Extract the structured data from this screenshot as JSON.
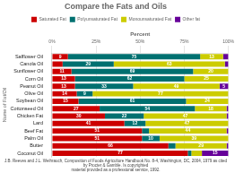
{
  "chart_data": {
    "type": "bar",
    "orientation": "horizontal",
    "stacked": true,
    "title": "Compare the Fats and Oils",
    "xlabel": "Percent",
    "ylabel": "Name of Fat/Oil",
    "annotations": [
      "J.B. Reeves and J.L. Weihrauch, Composition of Foods Agriculture Handbook No. 8-4, Washington, DC, 2004, 1979 as cited by Procter & Gamble. Is copyrighted\nmaterial provided as a professional service, 1992."
    ],
    "categories": [
      "Coconut Oil",
      "Butter",
      "Palm Oil",
      "Beef Fat",
      "Lard",
      "Chicken Fat",
      "Cottonseed Oil",
      "Soybean Oil",
      "Olive Oil",
      "Peanut Oil",
      "Corn Oil",
      "Sunflower Oil",
      "Canola Oil",
      "Safflower Oil"
    ],
    "series": [
      {
        "name": "Saturated Fat",
        "color": "#cc0000",
        "values": [
          77,
          66,
          51,
          51,
          41,
          30,
          27,
          15,
          14,
          13,
          13,
          11,
          6,
          9
        ],
        "value_labels": [
          "77",
          "66",
          "51",
          "51",
          "41",
          "30",
          "27",
          "15",
          "14",
          "13",
          "13",
          "11",
          null,
          "9"
        ]
      },
      {
        "name": "Polyunsaturated Fat",
        "color": "#007070",
        "values": [
          2,
          4,
          10,
          4,
          12,
          22,
          54,
          61,
          9,
          33,
          62,
          69,
          29,
          75
        ],
        "value_labels": [
          null,
          null,
          "10",
          null,
          "12",
          "22",
          "54",
          "61",
          "9",
          "33",
          "62",
          "69",
          "29",
          "75"
        ]
      },
      {
        "name": "Monounsaturated Fat",
        "color": "#cccc00",
        "values": [
          6,
          29,
          39,
          44,
          47,
          47,
          18,
          24,
          77,
          49,
          25,
          20,
          63,
          13
        ],
        "value_labels": [
          null,
          "29",
          "39",
          "44",
          "47",
          "47",
          "18",
          "24",
          "77",
          "49",
          "25",
          "20",
          "63",
          "13"
        ]
      },
      {
        "name": "Other fat",
        "color": "#660099",
        "values": [
          15,
          1,
          0,
          1,
          0,
          1,
          1,
          0,
          0,
          5,
          0,
          0,
          2,
          3
        ],
        "value_labels": [
          "15",
          null,
          null,
          null,
          null,
          null,
          null,
          null,
          null,
          "5",
          null,
          null,
          null,
          null
        ]
      }
    ],
    "xlim": [
      0,
      100
    ],
    "xticks": [
      {
        "value": 0,
        "label": "0%"
      },
      {
        "value": 25,
        "label": "25%"
      },
      {
        "value": 50,
        "label": "50%"
      },
      {
        "value": 75,
        "label": "75%"
      },
      {
        "value": 100,
        "label": "100%"
      }
    ],
    "grid": true,
    "legend": "top"
  }
}
